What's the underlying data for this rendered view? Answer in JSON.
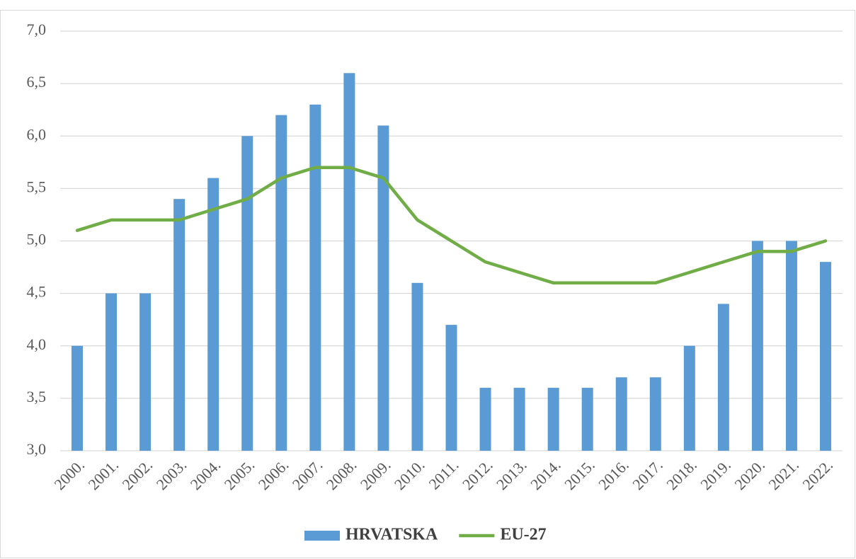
{
  "chart_data": {
    "type": "combo",
    "categories": [
      "2000.",
      "2001.",
      "2002.",
      "2003.",
      "2004.",
      "2005.",
      "2006.",
      "2007.",
      "2008.",
      "2009.",
      "2010.",
      "2011.",
      "2012.",
      "2013.",
      "2014.",
      "2015.",
      "2016.",
      "2017.",
      "2018.",
      "2019.",
      "2020.",
      "2021.",
      "2022."
    ],
    "series": [
      {
        "name": "HRVATSKA",
        "type": "bar",
        "color": "#5b9bd5",
        "values": [
          4.0,
          4.5,
          4.5,
          5.4,
          5.6,
          6.0,
          6.2,
          6.3,
          6.6,
          6.1,
          4.6,
          4.2,
          3.6,
          3.6,
          3.6,
          3.6,
          3.7,
          3.7,
          4.0,
          4.4,
          5.0,
          5.0,
          4.8
        ]
      },
      {
        "name": "EU-27",
        "type": "line",
        "color": "#70ad47",
        "values": [
          5.1,
          5.2,
          5.2,
          5.2,
          5.3,
          5.4,
          5.6,
          5.7,
          5.7,
          5.6,
          5.2,
          5.0,
          4.8,
          4.7,
          4.6,
          4.6,
          4.6,
          4.6,
          4.7,
          4.8,
          4.9,
          4.9,
          5.0
        ]
      }
    ],
    "ylim": [
      3.0,
      7.0
    ],
    "yticks": [
      {
        "value": 3.0,
        "label": "3,0"
      },
      {
        "value": 3.5,
        "label": "3,5"
      },
      {
        "value": 4.0,
        "label": "4,0"
      },
      {
        "value": 4.5,
        "label": "4,5"
      },
      {
        "value": 5.0,
        "label": "5,0"
      },
      {
        "value": 5.5,
        "label": "5,5"
      },
      {
        "value": 6.0,
        "label": "6,0"
      },
      {
        "value": 6.5,
        "label": "6,5"
      },
      {
        "value": 7.0,
        "label": "7,0"
      }
    ],
    "grid": true,
    "legend": "bottom"
  }
}
